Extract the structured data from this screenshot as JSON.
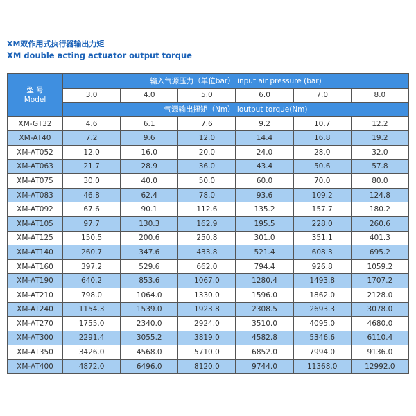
{
  "header": {
    "title_cn": "XM双作用式执行器输出力矩",
    "title_en": "XM double acting  actuator output torque"
  },
  "table": {
    "model_cn": "型 号",
    "model_en": "Model",
    "pressure_title": "输入气源压力（单位bar） input air pressure (bar)",
    "pressures": [
      "3.0",
      "4.0",
      "5.0",
      "6.0",
      "7.0",
      "8.0"
    ],
    "torque_title": "气源输出扭矩（Nm） ioutput torque(Nm)",
    "rows": [
      [
        "XM-GT32",
        "4.6",
        "6.1",
        "7.6",
        "9.2",
        "10.7",
        "12.2"
      ],
      [
        "XM-AT40",
        "7.2",
        "9.6",
        "12.0",
        "14.4",
        "16.8",
        "19.2"
      ],
      [
        "XM-AT052",
        "12.0",
        "16.0",
        "20.0",
        "24.0",
        "28.0",
        "32.0"
      ],
      [
        "XM-AT063",
        "21.7",
        "28.9",
        "36.0",
        "43.4",
        "50.6",
        "57.8"
      ],
      [
        "XM-AT075",
        "30.0",
        "40.0",
        "50.0",
        "60.0",
        "70.0",
        "80.0"
      ],
      [
        "XM-AT083",
        "46.8",
        "62.4",
        "78.0",
        "93.6",
        "109.2",
        "124.8"
      ],
      [
        "XM-AT092",
        "67.6",
        "90.1",
        "112.6",
        "135.2",
        "157.7",
        "180.2"
      ],
      [
        "XM-AT105",
        "97.7",
        "130.3",
        "162.9",
        "195.5",
        "228.0",
        "260.6"
      ],
      [
        "XM-AT125",
        "150.5",
        "200.6",
        "250.8",
        "301.0",
        "351.1",
        "401.3"
      ],
      [
        "XM-AT140",
        "260.7",
        "347.6",
        "433.8",
        "521.4",
        "608.3",
        "695.2"
      ],
      [
        "XM-AT160",
        "397.2",
        "529.6",
        "662.0",
        "794.4",
        "926.8",
        "1059.2"
      ],
      [
        "XM-AT190",
        "640.2",
        "853.6",
        "1067.0",
        "1280.4",
        "1493.8",
        "1707.2"
      ],
      [
        "XM-AT210",
        "798.0",
        "1064.0",
        "1330.0",
        "1596.0",
        "1862.0",
        "2128.0"
      ],
      [
        "XM-AT240",
        "1154.3",
        "1539.0",
        "1923.8",
        "2308.5",
        "2693.3",
        "3078.0"
      ],
      [
        "XM-AT270",
        "1755.0",
        "2340.0",
        "2924.0",
        "3510.0",
        "4095.0",
        "4680.0"
      ],
      [
        "XM-AT300",
        "2291.4",
        "3055.2",
        "3819.0",
        "4582.8",
        "5346.6",
        "6110.4"
      ],
      [
        "XM-AT350",
        "3426.0",
        "4568.0",
        "5710.0",
        "6852.0",
        "7994.0",
        "9136.0"
      ],
      [
        "XM-AT400",
        "4872.0",
        "6496.0",
        "8120.0",
        "9744.0",
        "11368.0",
        "12992.0"
      ]
    ]
  }
}
